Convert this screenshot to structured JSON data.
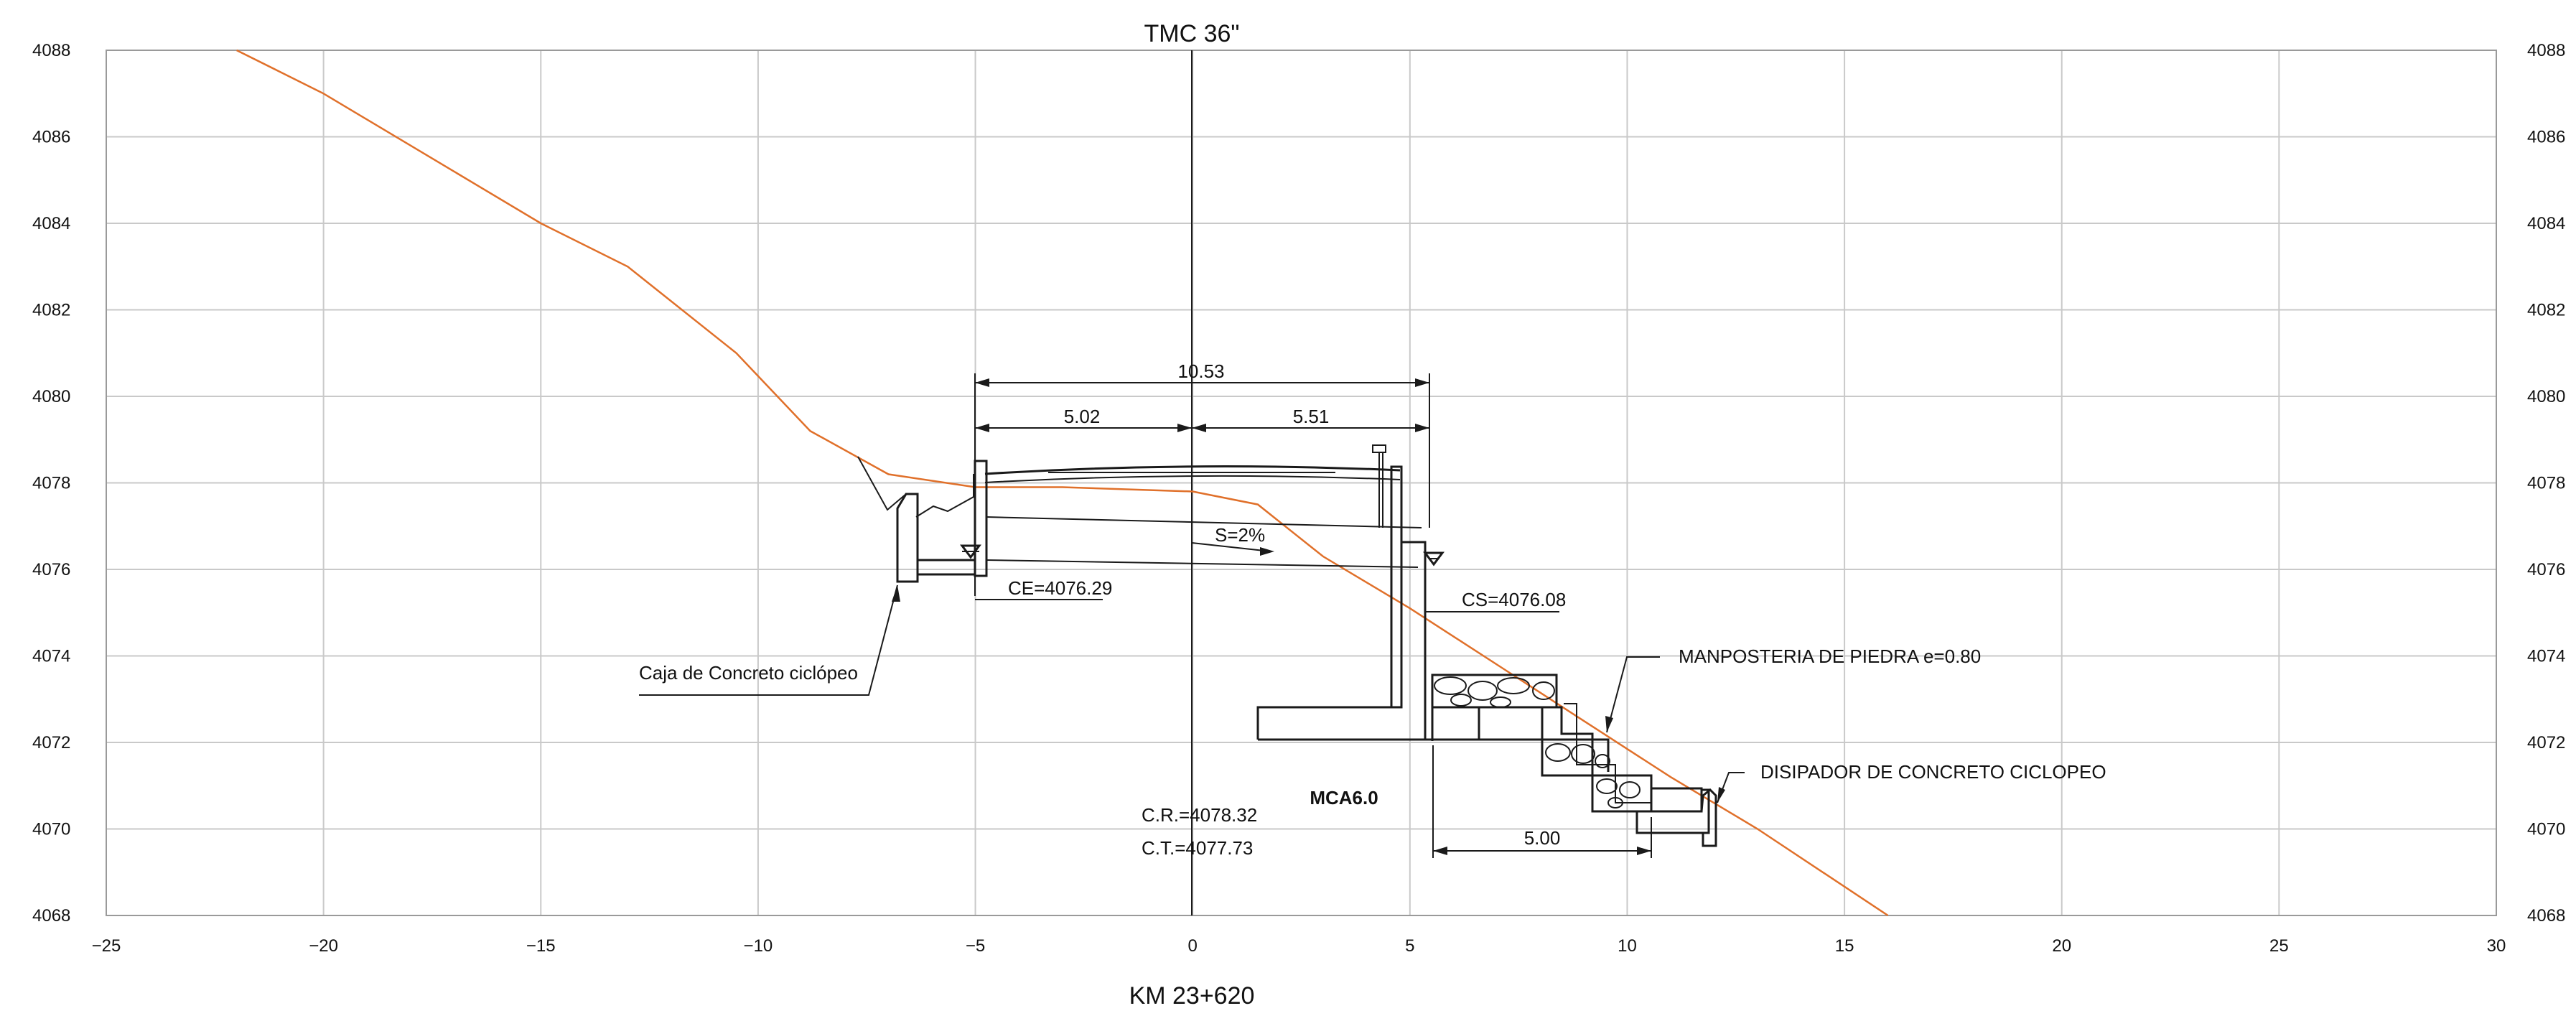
{
  "title": "TMC 36\"",
  "subtitle": "KM 23+620",
  "chart_data": {
    "type": "line",
    "xlim": [
      -25,
      30
    ],
    "ylim": [
      4068,
      4088
    ],
    "x_ticks": [
      -25,
      -20,
      -15,
      -10,
      -5,
      0,
      5,
      10,
      15,
      20,
      25,
      30
    ],
    "y_ticks": [
      4068,
      4070,
      4072,
      4074,
      4076,
      4078,
      4080,
      4082,
      4084,
      4086,
      4088
    ],
    "grid": true,
    "series": [
      {
        "color": "#e0702a",
        "x": [
          -22,
          -21,
          -20,
          -17,
          -15,
          -13,
          -10.5,
          -8.8,
          -7,
          -5,
          -3,
          0,
          1.5,
          3,
          5,
          7,
          9,
          11,
          13,
          16
        ],
        "y": [
          4088,
          4087.5,
          4087,
          4085.2,
          4084,
          4083,
          4081,
          4079.2,
          4078.2,
          4077.9,
          4077.9,
          4077.8,
          4077.5,
          4076.3,
          4075.1,
          4073.8,
          4072.5,
          4071.2,
          4070,
          4068
        ]
      }
    ]
  },
  "dimensions": {
    "total": "10.53",
    "left": "5.02",
    "right": "5.51",
    "disipador": "5.00"
  },
  "annotations": {
    "ce": "CE=4076.29",
    "cs": "CS=4076.08",
    "slope": "S=2%",
    "cr": "C.R.=4078.32",
    "ct": "C.T.=4077.73",
    "mca": "MCA6.0",
    "caja": "Caja de Concreto ciclópeo",
    "manposteria": "MANPOSTERIA DE PIEDRA e=0.80",
    "disipador": "DISIPADOR DE CONCRETO CICLOPEO"
  }
}
